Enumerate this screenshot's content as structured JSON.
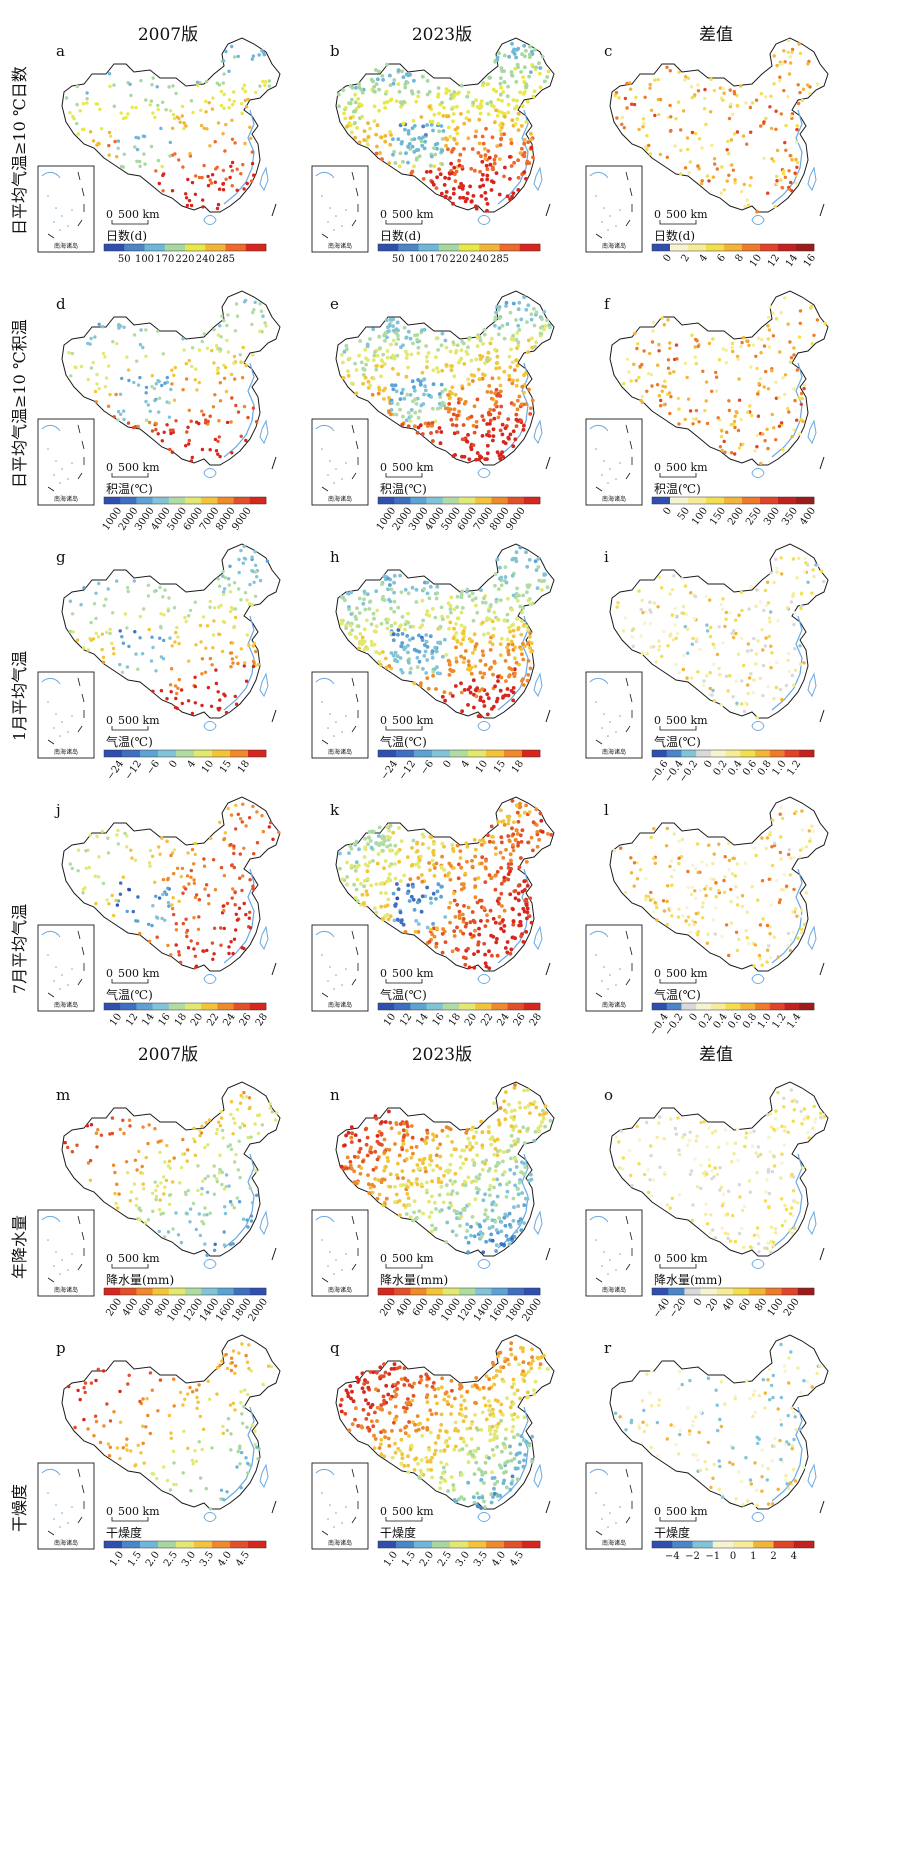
{
  "columns": [
    "2007版",
    "2023版",
    "差值"
  ],
  "columns_bottom": [
    "2007版",
    "2023版",
    "差值"
  ],
  "scale_bar": "500 km",
  "scale_zero": "0",
  "inset_label": "南海诸岛",
  "rows": [
    {
      "label": "日平均气温≥10 ℃日数",
      "panels": [
        {
          "id": "a",
          "legend_title": "日数(d)",
          "ticks": [
            "50",
            "100",
            "170",
            "220",
            "240",
            "285"
          ],
          "colors": [
            "#2f4fb0",
            "#4a86c8",
            "#6fb7d8",
            "#a8d8a0",
            "#e8e84a",
            "#f3b43a",
            "#ee6a2c",
            "#d7261e"
          ],
          "pattern": "south-warm",
          "density": 220
        },
        {
          "id": "b",
          "legend_title": "日数(d)",
          "ticks": [
            "50",
            "100",
            "170",
            "220",
            "240",
            "285"
          ],
          "colors": [
            "#2f4fb0",
            "#4a86c8",
            "#6fb7d8",
            "#a8d8a0",
            "#e8e84a",
            "#f3b43a",
            "#ee6a2c",
            "#d7261e"
          ],
          "pattern": "south-warm",
          "density": 520
        },
        {
          "id": "c",
          "legend_title": "日数(d)",
          "ticks": [
            "0",
            "2",
            "4",
            "6",
            "8",
            "10",
            "12",
            "14",
            "16"
          ],
          "colors": [
            "#2f4fb0",
            "#f6f3d0",
            "#f6ec98",
            "#f3de4c",
            "#f3b43a",
            "#ee7b2c",
            "#e0452a",
            "#c3211f",
            "#9e1b1b"
          ],
          "pattern": "diff-warm",
          "density": 220
        }
      ]
    },
    {
      "label": "日平均气温≥10 ℃积温",
      "panels": [
        {
          "id": "d",
          "legend_title": "积温(℃)",
          "ticks": [
            "1000",
            "2000",
            "3000",
            "4000",
            "5000",
            "6000",
            "7000",
            "8000",
            "9000"
          ],
          "colors": [
            "#2f4fb0",
            "#3f6fc0",
            "#5ca3d4",
            "#82c3d8",
            "#b0dca4",
            "#e2e870",
            "#f3c43a",
            "#ee8a2c",
            "#e2502a",
            "#d7261e"
          ],
          "pattern": "south-warm",
          "density": 220
        },
        {
          "id": "e",
          "legend_title": "积温(℃)",
          "ticks": [
            "1000",
            "2000",
            "3000",
            "4000",
            "5000",
            "6000",
            "7000",
            "8000",
            "9000"
          ],
          "colors": [
            "#2f4fb0",
            "#3f6fc0",
            "#5ca3d4",
            "#82c3d8",
            "#b0dca4",
            "#e2e870",
            "#f3c43a",
            "#ee8a2c",
            "#e2502a",
            "#d7261e"
          ],
          "pattern": "south-warm",
          "density": 520
        },
        {
          "id": "f",
          "legend_title": "积温(℃)",
          "ticks": [
            "0",
            "50",
            "100",
            "150",
            "200",
            "250",
            "300",
            "350",
            "400"
          ],
          "colors": [
            "#2f4fb0",
            "#f6f3d0",
            "#f6ec98",
            "#f3de4c",
            "#f3b43a",
            "#ee7b2c",
            "#e0452a",
            "#c3211f",
            "#9e1b1b"
          ],
          "pattern": "diff-warm",
          "density": 220
        }
      ]
    },
    {
      "label": "1月平均气温",
      "panels": [
        {
          "id": "g",
          "legend_title": "气温(℃)",
          "ticks": [
            "−24",
            "−12",
            "−6",
            "0",
            "4",
            "10",
            "15",
            "18"
          ],
          "colors": [
            "#2f4fb0",
            "#3f6fc0",
            "#5ca3d4",
            "#82c3d8",
            "#b0dca4",
            "#e2e870",
            "#f3c43a",
            "#ee8a2c",
            "#d7261e"
          ],
          "pattern": "south-warm",
          "density": 220
        },
        {
          "id": "h",
          "legend_title": "气温(℃)",
          "ticks": [
            "−24",
            "−12",
            "−6",
            "0",
            "4",
            "10",
            "15",
            "18"
          ],
          "colors": [
            "#2f4fb0",
            "#3f6fc0",
            "#5ca3d4",
            "#82c3d8",
            "#b0dca4",
            "#e2e870",
            "#f3c43a",
            "#ee8a2c",
            "#d7261e"
          ],
          "pattern": "south-warm",
          "density": 520
        },
        {
          "id": "i",
          "legend_title": "气温(℃)",
          "ticks": [
            "−0.6",
            "−0.4",
            "−0.2",
            "0",
            "0.2",
            "0.4",
            "0.6",
            "0.8",
            "1.0",
            "1.2"
          ],
          "colors": [
            "#2f4fb0",
            "#4a86c8",
            "#82c3d8",
            "#d9d9d9",
            "#f6f3d0",
            "#f6ec98",
            "#f3de4c",
            "#f3b43a",
            "#ee7b2c",
            "#e0452a",
            "#c3211f"
          ],
          "pattern": "diff-mixed",
          "density": 220
        }
      ]
    },
    {
      "label": "7月平均气温",
      "panels": [
        {
          "id": "j",
          "legend_title": "气温(℃)",
          "ticks": [
            "10",
            "12",
            "14",
            "16",
            "18",
            "20",
            "22",
            "24",
            "26",
            "28"
          ],
          "colors": [
            "#2f4fb0",
            "#3f6fc0",
            "#5ca3d4",
            "#82c3d8",
            "#b0dca4",
            "#e2e870",
            "#f3c43a",
            "#ee8a2c",
            "#e2502a",
            "#d7261e"
          ],
          "pattern": "east-warm",
          "density": 220
        },
        {
          "id": "k",
          "legend_title": "气温(℃)",
          "ticks": [
            "10",
            "12",
            "14",
            "16",
            "18",
            "20",
            "22",
            "24",
            "26",
            "28"
          ],
          "colors": [
            "#2f4fb0",
            "#3f6fc0",
            "#5ca3d4",
            "#82c3d8",
            "#b0dca4",
            "#e2e870",
            "#f3c43a",
            "#ee8a2c",
            "#e2502a",
            "#d7261e"
          ],
          "pattern": "east-warm",
          "density": 520
        },
        {
          "id": "l",
          "legend_title": "气温(℃)",
          "ticks": [
            "−0.4",
            "−0.2",
            "0",
            "0.2",
            "0.4",
            "0.6",
            "0.8",
            "1.0",
            "1.2",
            "1.4"
          ],
          "colors": [
            "#2f4fb0",
            "#4a86c8",
            "#d9d9d9",
            "#f6f3d0",
            "#f6ec98",
            "#f3de4c",
            "#f3b43a",
            "#ee7b2c",
            "#e0452a",
            "#c3211f",
            "#9e1b1b"
          ],
          "pattern": "diff-mixed",
          "density": 220
        }
      ]
    },
    {
      "label": "年降水量",
      "panels": [
        {
          "id": "m",
          "legend_title": "降水量(mm)",
          "ticks": [
            "200",
            "400",
            "600",
            "800",
            "1000",
            "1200",
            "1400",
            "1600",
            "1800",
            "2000"
          ],
          "colors": [
            "#d7261e",
            "#e2502a",
            "#ee8a2c",
            "#f3c43a",
            "#e2e870",
            "#b0dca4",
            "#82c3d8",
            "#5ca3d4",
            "#3f6fc0",
            "#2f4fb0"
          ],
          "pattern": "precip",
          "density": 220
        },
        {
          "id": "n",
          "legend_title": "降水量(mm)",
          "ticks": [
            "200",
            "400",
            "600",
            "800",
            "1000",
            "1200",
            "1400",
            "1600",
            "1800",
            "2000"
          ],
          "colors": [
            "#d7261e",
            "#e2502a",
            "#ee8a2c",
            "#f3c43a",
            "#e2e870",
            "#b0dca4",
            "#82c3d8",
            "#5ca3d4",
            "#3f6fc0",
            "#2f4fb0"
          ],
          "pattern": "precip",
          "density": 520
        },
        {
          "id": "o",
          "legend_title": "降水量(mm)",
          "ticks": [
            "−40",
            "−20",
            "0",
            "20",
            "40",
            "60",
            "80",
            "100",
            "200"
          ],
          "colors": [
            "#2f4fb0",
            "#4a86c8",
            "#d9d9d9",
            "#f6f3d0",
            "#f6ec98",
            "#f3de4c",
            "#f3b43a",
            "#ee7b2c",
            "#e0452a",
            "#9e1b1b"
          ],
          "pattern": "diff-precip",
          "density": 220
        }
      ]
    },
    {
      "label": "干燥度",
      "panels": [
        {
          "id": "p",
          "legend_title": "干燥度",
          "ticks": [
            "1.0",
            "1.5",
            "2.0",
            "2.5",
            "3.0",
            "3.5",
            "4.0",
            "4.5"
          ],
          "colors": [
            "#2f4fb0",
            "#4a86c8",
            "#6fb7d8",
            "#a8d8a0",
            "#e2e870",
            "#f3c43a",
            "#ee8a2c",
            "#e2502a",
            "#d7261e"
          ],
          "pattern": "arid",
          "density": 160
        },
        {
          "id": "q",
          "legend_title": "干燥度",
          "ticks": [
            "1.0",
            "1.5",
            "2.0",
            "2.5",
            "3.0",
            "3.5",
            "4.0",
            "4.5"
          ],
          "colors": [
            "#2f4fb0",
            "#4a86c8",
            "#6fb7d8",
            "#a8d8a0",
            "#e2e870",
            "#f3c43a",
            "#ee8a2c",
            "#e2502a",
            "#d7261e"
          ],
          "pattern": "arid",
          "density": 520
        },
        {
          "id": "r",
          "legend_title": "干燥度",
          "ticks": [
            "−4",
            "−2",
            "−1",
            "0",
            "1",
            "2",
            "4"
          ],
          "colors": [
            "#2f4fb0",
            "#4a86c8",
            "#82c3d8",
            "#f6f3d0",
            "#f6ec98",
            "#f3b43a",
            "#e0452a",
            "#c3211f"
          ],
          "pattern": "diff-mixed",
          "density": 160
        }
      ]
    }
  ]
}
